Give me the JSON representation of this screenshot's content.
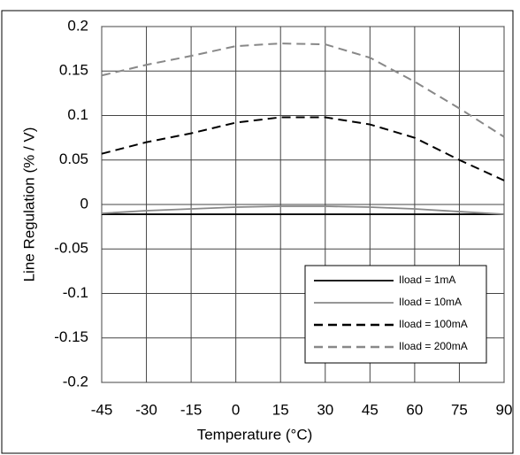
{
  "chart_data": {
    "type": "line",
    "xlabel": "Temperature (°C)",
    "ylabel": "Line Regulation (% / V)",
    "x": [
      -45,
      -30,
      -15,
      0,
      15,
      30,
      45,
      60,
      75,
      90
    ],
    "xlim": [
      -45,
      90
    ],
    "xticks": [
      -45,
      -30,
      -15,
      0,
      15,
      30,
      45,
      60,
      75,
      90
    ],
    "ylim": [
      -0.2,
      0.2
    ],
    "yticks": [
      -0.2,
      -0.15,
      -0.1,
      -0.05,
      0,
      0.05,
      0.1,
      0.15,
      0.2
    ],
    "grid": true,
    "legend": "lower right",
    "series": [
      {
        "name": "Iload = 1mA",
        "color": "#000000",
        "dash": "none",
        "values": [
          -0.011,
          -0.011,
          -0.011,
          -0.011,
          -0.011,
          -0.011,
          -0.011,
          -0.011,
          -0.011,
          -0.011
        ]
      },
      {
        "name": "Iload = 10mA",
        "color": "#888888",
        "dash": "none",
        "values": [
          -0.01,
          -0.007,
          -0.005,
          -0.003,
          -0.002,
          -0.002,
          -0.003,
          -0.005,
          -0.008,
          -0.011
        ]
      },
      {
        "name": "Iload = 100mA",
        "color": "#000000",
        "dash": "10 6",
        "values": [
          0.057,
          0.07,
          0.08,
          0.092,
          0.098,
          0.098,
          0.09,
          0.075,
          0.05,
          0.027
        ]
      },
      {
        "name": "Iload = 200mA",
        "color": "#888888",
        "dash": "10 6",
        "values": [
          0.145,
          0.157,
          0.167,
          0.178,
          0.181,
          0.18,
          0.165,
          0.138,
          0.108,
          0.076
        ]
      }
    ]
  }
}
